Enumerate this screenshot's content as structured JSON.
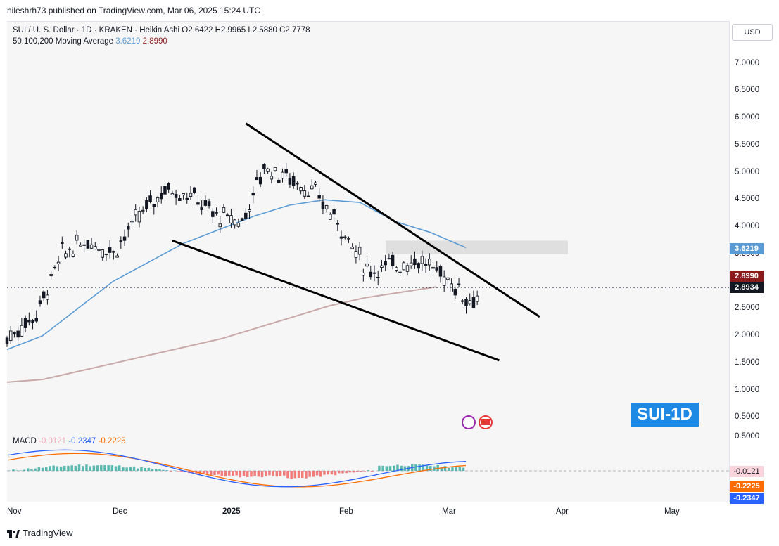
{
  "header": {
    "published_by": "nileshrh73 published on TradingView.com, Mar 06, 2025 15:24 UTC"
  },
  "legend": {
    "symbol_line": "SUI / U. S. Dollar · 1D · KRAKEN · Heikin Ashi",
    "open": "O2.6422",
    "high": "H2.9965",
    "low": "L2.5880",
    "close": "C2.7778",
    "ma_label": "50,100,200 Moving Average",
    "ma_value_1": "3.6219",
    "ma_value_2": "2.8990"
  },
  "price_axis": {
    "currency": "USD",
    "ticks": [
      "7.0000",
      "6.5000",
      "6.0000",
      "5.5000",
      "5.0000",
      "4.5000",
      "4.0000",
      "3.5000",
      "3.0000",
      "2.5000",
      "2.0000",
      "1.5000",
      "1.0000",
      "0.5000"
    ]
  },
  "price_tags": {
    "ma50": "3.6219",
    "ma200": "2.8990",
    "last": "2.8934"
  },
  "macd": {
    "label": "MACD",
    "hist_value": "-0.0121",
    "macd_value": "-0.2347",
    "signal_value": "-0.2225",
    "axis_tick": "0.5000"
  },
  "time_axis": [
    "Nov",
    "Dec",
    "2025",
    "Feb",
    "Mar",
    "Apr",
    "May"
  ],
  "watermark": "SUI-1D",
  "footer": "TradingView",
  "colors": {
    "ma50": "#5b9bd5",
    "ma200": "#c9a9a9",
    "candle": "#131722",
    "zone": "#d9d9d9",
    "macd_line": "#2962ff",
    "signal_line": "#ff6d00",
    "hist_pos": "#26a69a",
    "hist_neg": "#ef5350"
  },
  "chart_data": {
    "type": "candlestick",
    "title": "SUI / U. S. Dollar · 1D · KRAKEN · Heikin Ashi",
    "ylim": [
      0.35,
      7.4
    ],
    "price_series": {
      "x": [
        "2024-10-28",
        "2024-11-05",
        "2024-11-12",
        "2024-11-19",
        "2024-11-26",
        "2024-12-03",
        "2024-12-10",
        "2024-12-17",
        "2024-12-24",
        "2024-12-31",
        "2025-01-06",
        "2025-01-13",
        "2025-01-20",
        "2025-01-27",
        "2025-02-03",
        "2025-02-10",
        "2025-02-17",
        "2025-02-24",
        "2025-03-03",
        "2025-03-06"
      ],
      "close": [
        1.95,
        2.4,
        3.5,
        3.75,
        3.55,
        4.2,
        4.7,
        4.6,
        4.2,
        4.1,
        5.1,
        4.9,
        4.6,
        4.0,
        3.2,
        3.3,
        3.4,
        3.1,
        2.65,
        2.78
      ]
    },
    "moving_averages": [
      {
        "name": "50",
        "value": 3.6219,
        "points": [
          1.75,
          2.0,
          2.5,
          3.0,
          3.35,
          3.7,
          3.95,
          4.2,
          4.4,
          4.5,
          4.45,
          4.1,
          3.9,
          3.62
        ]
      },
      {
        "name": "200",
        "value": 2.899,
        "points": [
          1.15,
          1.2,
          1.35,
          1.5,
          1.65,
          1.8,
          1.95,
          2.15,
          2.35,
          2.55,
          2.7,
          2.8,
          2.899
        ]
      }
    ],
    "trendlines": [
      {
        "from": [
          "2025-01-01",
          5.9
        ],
        "to": [
          "2025-03-22",
          2.35
        ]
      },
      {
        "from": [
          "2024-12-12",
          3.75
        ],
        "to": [
          "2025-03-11",
          1.55
        ]
      }
    ],
    "zone": [
      3.5,
      3.75
    ],
    "macd": {
      "macd": -0.2347,
      "signal": -0.2225,
      "histogram": -0.0121
    }
  }
}
